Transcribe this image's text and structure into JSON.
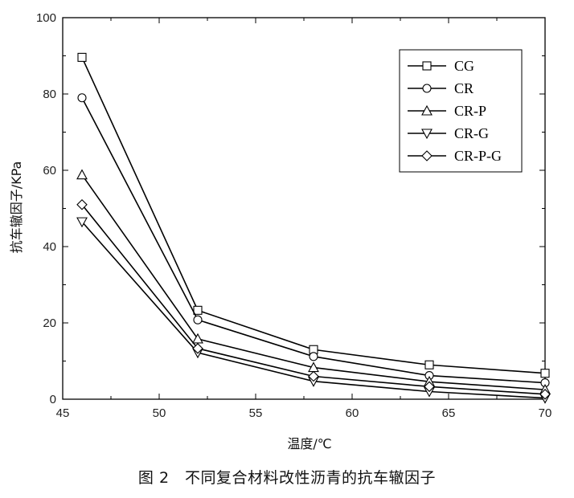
{
  "chart_data": {
    "type": "line",
    "xlabel": "温度/℃",
    "ylabel": "抗车辙因子/KPa",
    "x": [
      46,
      52,
      58,
      64,
      70
    ],
    "xlim": [
      45,
      70
    ],
    "ylim": [
      0,
      100
    ],
    "xticks": [
      45,
      50,
      55,
      60,
      65,
      70
    ],
    "yticks": [
      0,
      20,
      40,
      60,
      80,
      100
    ],
    "grid": false,
    "legend_position": "top-right",
    "series": [
      {
        "name": "CG",
        "marker": "square",
        "values": [
          89.6,
          23.3,
          13.0,
          9.0,
          6.8
        ]
      },
      {
        "name": "CR",
        "marker": "circle",
        "values": [
          79.0,
          20.8,
          11.2,
          6.2,
          4.3
        ]
      },
      {
        "name": "CR-P",
        "marker": "triangle-up",
        "values": [
          58.8,
          15.8,
          8.3,
          4.6,
          2.5
        ]
      },
      {
        "name": "CR-G",
        "marker": "triangle-down",
        "values": [
          46.5,
          12.2,
          4.7,
          2.0,
          0.3
        ]
      },
      {
        "name": "CR-P-G",
        "marker": "diamond",
        "values": [
          51.0,
          13.3,
          6.0,
          3.3,
          1.3
        ]
      }
    ],
    "line_color": "#000000"
  },
  "caption": "图 2　不同复合材料改性沥青的抗车辙因子"
}
